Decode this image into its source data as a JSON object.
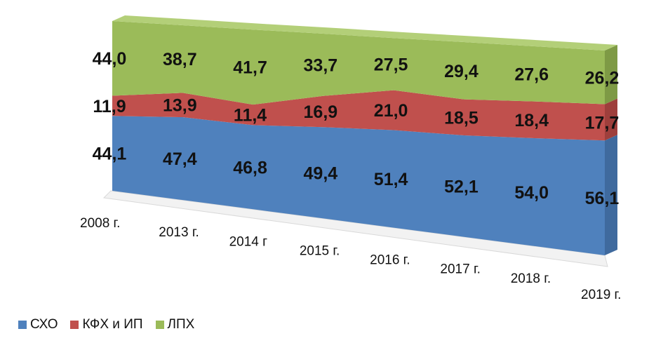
{
  "chart_data": {
    "type": "area",
    "stacked": true,
    "percent_stacked": true,
    "categories": [
      "2008 г.",
      "2013 г.",
      "2014 г",
      "2015 г.",
      "2016 г.",
      "2017 г.",
      "2018 г.",
      "2019 г."
    ],
    "series": [
      {
        "name": "СХО",
        "color": "#4f81bd",
        "values": [
          44.1,
          47.4,
          46.8,
          49.4,
          51.4,
          52.1,
          54.0,
          56.1
        ]
      },
      {
        "name": "КФХ и ИП",
        "color": "#c0504d",
        "values": [
          11.9,
          13.9,
          11.4,
          16.9,
          21.0,
          18.5,
          18.4,
          17.7
        ]
      },
      {
        "name": "ЛПХ",
        "color": "#9bbb59",
        "values": [
          44.0,
          38.7,
          41.7,
          33.7,
          27.5,
          29.4,
          27.6,
          26.2
        ]
      }
    ],
    "labels": [
      [
        "44,1",
        "47,4",
        "46,8",
        "49,4",
        "51,4",
        "52,1",
        "54,0",
        "56,1"
      ],
      [
        "11,9",
        "13,9",
        "11,4",
        "16,9",
        "21,0",
        "18,5",
        "18,4",
        "17,7"
      ],
      [
        "44,0",
        "38,7",
        "41,7",
        "33,7",
        "27,5",
        "29,4",
        "27,6",
        "26,2"
      ]
    ],
    "ylim": [
      0,
      100
    ],
    "legend_position": "bottom-left",
    "style": "3d"
  }
}
